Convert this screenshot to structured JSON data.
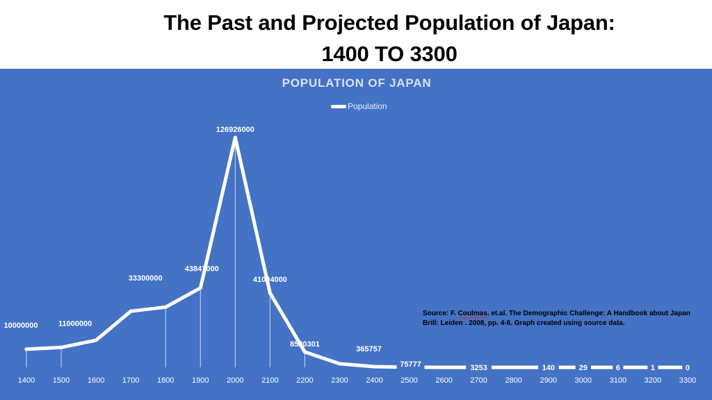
{
  "page": {
    "title_line1": "The Past and Projected Population of Japan:",
    "title_line2": "1400 TO 3300"
  },
  "colors": {
    "background": "#ffffff",
    "panel": "#4472c4",
    "series_line": "#ffffff",
    "source_text": "#000000"
  },
  "source": {
    "prefix": "Source:  F. ",
    "author_flagged": "Coulmas",
    "line1_rest": ". et.al. The Demographic Challenge: A Handbook about Japan",
    "line2": "Brill: Leiden . 2008,  pp. 4-6. Graph created using source data."
  },
  "chart_data": {
    "type": "line",
    "title": "POPULATION OF JAPAN",
    "legend": "top-center",
    "grid": false,
    "categories": [
      "1400",
      "1500",
      "1600",
      "1700",
      "1800",
      "1900",
      "2000",
      "2100",
      "2200",
      "2300",
      "2400",
      "2500",
      "2600",
      "2700",
      "2800",
      "2900",
      "3000",
      "3100",
      "3200",
      "3300"
    ],
    "series": [
      {
        "name": "Population",
        "values": [
          10000000,
          11000000,
          15000000,
          31000000,
          33300000,
          43847000,
          126926000,
          41094000,
          8520301,
          2000000,
          365757,
          75777,
          16000,
          3253,
          700,
          140,
          29,
          6,
          1,
          0
        ],
        "labeled": [
          true,
          true,
          false,
          false,
          true,
          true,
          true,
          true,
          true,
          false,
          true,
          true,
          false,
          true,
          false,
          true,
          true,
          true,
          true,
          true
        ]
      }
    ],
    "data_labels": [
      "10000000",
      "11000000",
      "",
      "",
      "33300000",
      "43847000",
      "126926000",
      "41094000",
      "8520301",
      "",
      "365757",
      "75777",
      "",
      "3253",
      "",
      "140",
      "29",
      "6",
      "1",
      "0"
    ],
    "ylim": [
      0,
      126926000
    ]
  }
}
